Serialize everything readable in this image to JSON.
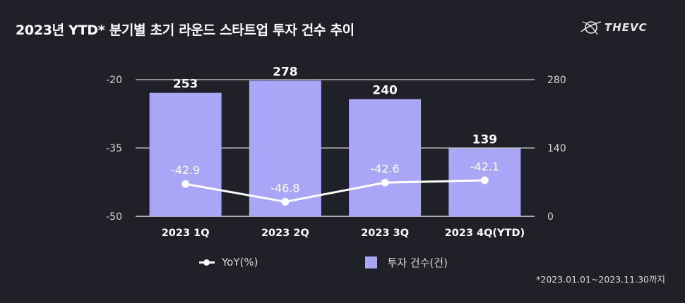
{
  "title": "2023년 YTD* 분기별 초기 라운드 스타트업 투자 건수 추이",
  "logo": {
    "text": "THEVC",
    "icon": "globe-swoosh-icon"
  },
  "footnote": "*2023.01.01~2023.11.30까지",
  "legend": {
    "line_label": "YoY(%)",
    "bar_label": "투자 건수(건)"
  },
  "colors": {
    "background": "#202128",
    "bar": "#a9a5f7",
    "line": "#ffffff",
    "grid": "#ffffff"
  },
  "chart_data": {
    "type": "bar+line",
    "categories": [
      "2023 1Q",
      "2023 2Q",
      "2023 3Q",
      "2023 4Q(YTD)"
    ],
    "series": [
      {
        "name": "투자 건수(건)",
        "type": "bar",
        "axis": "right",
        "values": [
          253,
          278,
          240,
          139
        ]
      },
      {
        "name": "YoY(%)",
        "type": "line",
        "axis": "left",
        "values": [
          -42.9,
          -46.8,
          -42.6,
          -42.1
        ]
      }
    ],
    "left_axis": {
      "ticks": [
        "-20",
        "-35",
        "-50"
      ],
      "range": [
        -50,
        -20
      ]
    },
    "right_axis": {
      "ticks": [
        "280",
        "140",
        "0"
      ],
      "range": [
        0,
        280
      ]
    },
    "bar_labels": [
      "253",
      "278",
      "240",
      "139"
    ],
    "line_labels": [
      "-42.9",
      "-46.8",
      "-42.6",
      "-42.1"
    ]
  }
}
